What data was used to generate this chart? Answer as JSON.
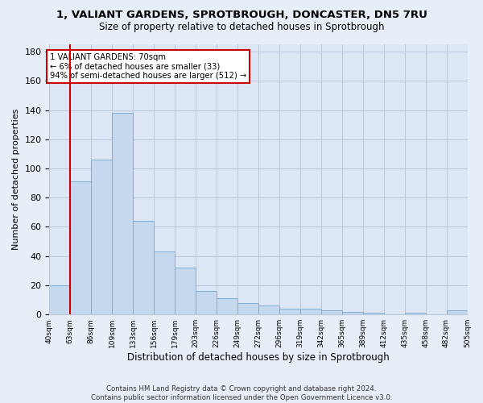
{
  "title_line1": "1, VALIANT GARDENS, SPROTBROUGH, DONCASTER, DN5 7RU",
  "title_line2": "Size of property relative to detached houses in Sprotbrough",
  "xlabel": "Distribution of detached houses by size in Sprotbrough",
  "ylabel": "Number of detached properties",
  "bar_color": "#c5d8ed",
  "bar_edgecolor": "#7bafd4",
  "bar_values": [
    20,
    91,
    106,
    138,
    64,
    43,
    32,
    16,
    11,
    8,
    6,
    4,
    4,
    3,
    2,
    1,
    0,
    1,
    0,
    3
  ],
  "bin_labels": [
    "40sqm",
    "63sqm",
    "86sqm",
    "109sqm",
    "133sqm",
    "156sqm",
    "179sqm",
    "203sqm",
    "226sqm",
    "249sqm",
    "272sqm",
    "296sqm",
    "319sqm",
    "342sqm",
    "365sqm",
    "389sqm",
    "412sqm",
    "435sqm",
    "458sqm",
    "482sqm",
    "505sqm"
  ],
  "ylim": [
    0,
    185
  ],
  "yticks": [
    0,
    20,
    40,
    60,
    80,
    100,
    120,
    140,
    160,
    180
  ],
  "property_line_x": 1.0,
  "annotation_text": "1 VALIANT GARDENS: 70sqm\n← 6% of detached houses are smaller (33)\n94% of semi-detached houses are larger (512) →",
  "annotation_box_color": "#ffffff",
  "annotation_box_edgecolor": "#cc0000",
  "red_line_color": "#cc0000",
  "footer_line1": "Contains HM Land Registry data © Crown copyright and database right 2024.",
  "footer_line2": "Contains public sector information licensed under the Open Government Licence v3.0.",
  "fig_facecolor": "#e8eef7",
  "axes_facecolor": "#dce6f5",
  "grid_color": "#b8c8dc"
}
